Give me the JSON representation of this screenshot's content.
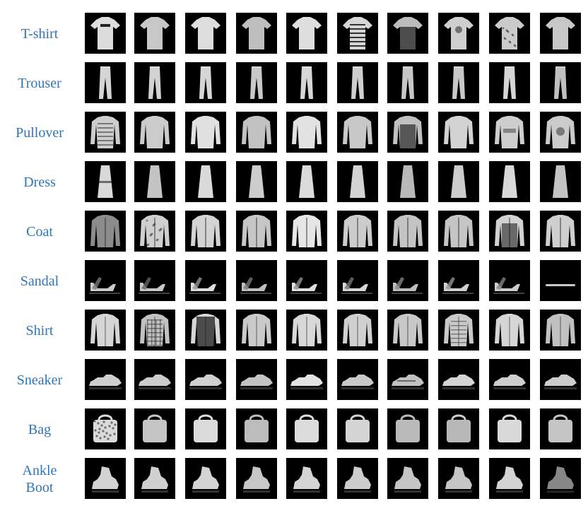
{
  "rows": [
    {
      "label": "T-shirt",
      "icon": "tshirt-icon"
    },
    {
      "label": "Trouser",
      "icon": "trouser-icon"
    },
    {
      "label": "Pullover",
      "icon": "pullover-icon"
    },
    {
      "label": "Dress",
      "icon": "dress-icon"
    },
    {
      "label": "Coat",
      "icon": "coat-icon"
    },
    {
      "label": "Sandal",
      "icon": "sandal-icon"
    },
    {
      "label": "Shirt",
      "icon": "shirt-icon"
    },
    {
      "label": "Sneaker",
      "icon": "sneaker-icon"
    },
    {
      "label": "Bag",
      "icon": "bag-icon"
    },
    {
      "label": "Ankle\nBoot",
      "icon": "ankle-boot-icon"
    }
  ],
  "colors": {
    "label": "#2f76b8",
    "thumb_background": "#000000",
    "page_background": "#ffffff"
  }
}
